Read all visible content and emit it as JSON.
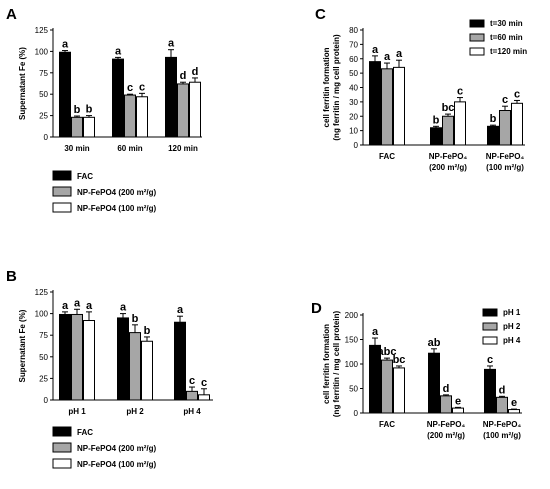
{
  "chart_data": [
    {
      "panel": "A",
      "type": "bar",
      "ylabel": "Supernatant Fe (%)",
      "categories": [
        "30 min",
        "60 min",
        "120 min"
      ],
      "yticks": [
        0,
        25,
        50,
        75,
        100,
        125
      ],
      "ylim": [
        0,
        125
      ],
      "series": [
        {
          "name": "FAC",
          "color": "#000000",
          "values": [
            99,
            91,
            93
          ],
          "errors": [
            2,
            2,
            9
          ],
          "labels": [
            "a",
            "a",
            "a"
          ]
        },
        {
          "name": "NP-FePO4 (200 m²/g)",
          "color": "#a6a6a6",
          "values": [
            23,
            49,
            62
          ],
          "errors": [
            1.5,
            1,
            2
          ],
          "labels": [
            "b",
            "c",
            "d"
          ]
        },
        {
          "name": "NP-FePO4 (100 m²/g)",
          "color": "#ffffff",
          "values": [
            23,
            47,
            64
          ],
          "errors": [
            2,
            4,
            5
          ],
          "labels": [
            "b",
            "c",
            "d"
          ]
        }
      ],
      "legend": [
        "FAC",
        "NP-FePO4 (200 m²/g)",
        "NP-FePO4 (100 m²/g)"
      ]
    },
    {
      "panel": "C",
      "type": "bar",
      "ylabel": "cell ferritin formation (ng ferritin / mg cell protein)",
      "categories": [
        "FAC",
        "NP-FePO₄ (200 m²/g)",
        "NP-FePO₄ (100 m²/g)"
      ],
      "yticks": [
        0,
        10,
        20,
        30,
        40,
        50,
        60,
        70,
        80
      ],
      "ylim": [
        0,
        80
      ],
      "series": [
        {
          "name": "t=30 min",
          "color": "#000000",
          "values": [
            58,
            12,
            13
          ],
          "errors": [
            4,
            1,
            0.8
          ],
          "labels": [
            "a",
            "b",
            "b"
          ]
        },
        {
          "name": "t=60 min",
          "color": "#a6a6a6",
          "values": [
            53,
            20,
            24
          ],
          "errors": [
            4,
            1.5,
            3
          ],
          "labels": [
            "a",
            "bc",
            "c"
          ]
        },
        {
          "name": "t=120 min",
          "color": "#ffffff",
          "values": [
            54,
            30,
            29
          ],
          "errors": [
            5,
            3,
            2
          ],
          "labels": [
            "a",
            "c",
            "c"
          ]
        }
      ],
      "legend": [
        "t=30 min",
        "t=60 min",
        "t=120 min"
      ]
    },
    {
      "panel": "B",
      "type": "bar",
      "ylabel": "Supernatant Fe (%)",
      "categories": [
        "pH 1",
        "pH 2",
        "pH 4"
      ],
      "yticks": [
        0,
        25,
        50,
        75,
        100,
        125
      ],
      "ylim": [
        0,
        125
      ],
      "series": [
        {
          "name": "FAC",
          "color": "#000000",
          "values": [
            99,
            95,
            90
          ],
          "errors": [
            3,
            5,
            7
          ],
          "labels": [
            "a",
            "a",
            "a"
          ]
        },
        {
          "name": "NP-FePO4 (200 m²/g)",
          "color": "#a6a6a6",
          "values": [
            99,
            78,
            10
          ],
          "errors": [
            6,
            9,
            5
          ],
          "labels": [
            "a",
            "b",
            "c"
          ]
        },
        {
          "name": "NP-FePO4 (100 m²/g)",
          "color": "#ffffff",
          "values": [
            92,
            68,
            6
          ],
          "errors": [
            10,
            5,
            7
          ],
          "labels": [
            "a",
            "b",
            "c"
          ]
        }
      ],
      "legend": [
        "FAC",
        "NP-FePO4 (200 m²/g)",
        "NP-FePO4 (100 m²/g)"
      ]
    },
    {
      "panel": "D",
      "type": "bar",
      "ylabel": "cell ferritin formation (ng ferritin / mg cell protein)",
      "categories": [
        "FAC",
        "NP-FePO₄ (200 m²/g)",
        "NP-FePO₄ (100 m²/g)"
      ],
      "yticks": [
        0,
        50,
        100,
        150,
        200
      ],
      "ylim": [
        0,
        200
      ],
      "series": [
        {
          "name": "pH 1",
          "color": "#000000",
          "values": [
            138,
            122,
            89
          ],
          "errors": [
            15,
            9,
            7
          ],
          "labels": [
            "a",
            "ab",
            "c"
          ]
        },
        {
          "name": "pH 2",
          "color": "#a6a6a6",
          "values": [
            108,
            35,
            32
          ],
          "errors": [
            4,
            2,
            2
          ],
          "labels": [
            "abc",
            "d",
            "d"
          ]
        },
        {
          "name": "pH 4",
          "color": "#ffffff",
          "values": [
            92,
            10,
            7
          ],
          "errors": [
            4,
            1.5,
            1
          ],
          "labels": [
            "bc",
            "e",
            "e"
          ]
        }
      ],
      "legend": [
        "pH 1",
        "pH 2",
        "pH 4"
      ]
    }
  ]
}
